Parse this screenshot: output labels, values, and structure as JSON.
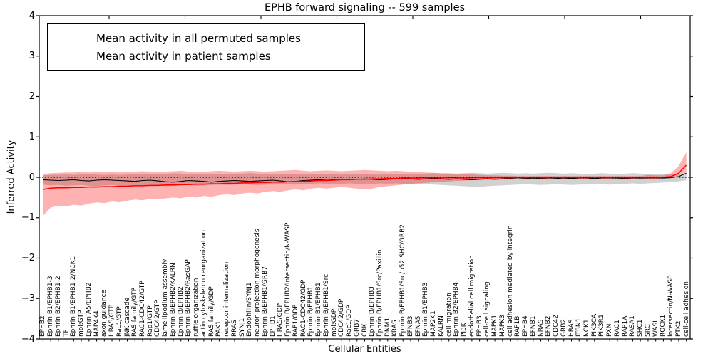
{
  "title": "EPHB forward signaling -- 599 samples",
  "axes": {
    "x_label": "Cellular Entities",
    "y_label": "Inferred Activity"
  },
  "legend": {
    "entries": [
      {
        "label": "Mean activity in all permuted samples",
        "color": "#000000"
      },
      {
        "label": "Mean activity in patient samples",
        "color": "#ff0000"
      }
    ],
    "position": "upper left"
  },
  "chart_data": {
    "type": "line",
    "title": "EPHB forward signaling -- 599 samples",
    "xlabel": "Cellular Entities",
    "ylabel": "Inferred Activity",
    "ylim": [
      -4,
      4
    ],
    "yticks": [
      -4,
      -3,
      -2,
      -1,
      0,
      1,
      2,
      3,
      4
    ],
    "grid": false,
    "legend_position": "upper left",
    "reference_line": {
      "y": 0,
      "style": "dotted",
      "color": "#000000"
    },
    "categories": [
      "EPHB2",
      "Ephrin B1/EPHB1-3",
      "Ephrin B2/EPHB1-2",
      "TF",
      "Ephrin B1/EPHB1-2/NCK1",
      "mol:GTP",
      "Ephrin A5/EPHB2",
      "MAP4K4",
      "axon guidance",
      "HRAS/GTP",
      "Rac1/GTP",
      "JNK cascade",
      "RAS family/GTP",
      "RAC1-CDC42/GTP",
      "Rap1/GTP",
      "CDC42/GTP",
      "lamellipodium assembly",
      "Ephrin B/EPHB2/KALRN",
      "Ephrin B/EPHB2",
      "Ephrin B/EPHB2/RasGAP",
      "ruffle organization",
      "actin cytoskeleton reorganization",
      "RAS family/GDP",
      "PAK1",
      "receptor internalization",
      "RRAS",
      "SYNJ1",
      "Endophilin/SYNJ1",
      "neuron projection morphogenesis",
      "Ephrin B/EPHB1/GRB7",
      "EPHB1",
      "HRAS/GDP",
      "Ephrin B/EPHB2/Intersectin/N-WASP",
      "RAP1/GDP",
      "RAC1-CDC42/GDP",
      "Ephrin B/EPHB1",
      "Ephrin B1/EPHB1",
      "Ephrin B/EPHB1/Src",
      "mol:GDP",
      "CDC42/GDP",
      "Rac1/GDP",
      "GRB7",
      "CRK",
      "Ephrin B/EPHB3",
      "Ephrin B/EPHB1/Src/Paxillin",
      "DNM1",
      "KRAS",
      "Ephrin B/EPHB1/Src/p52 SHC/GRB2",
      "EFNB3",
      "EFNA5",
      "Ephrin B1/EPHB3",
      "MAP2K1",
      "KALRN",
      "cell migration",
      "Ephrin B2/EPHB4",
      "PI3K",
      "endothelial cell migration",
      "EPHB3",
      "cell-cell signaling",
      "MAPK1",
      "MAPK3",
      "cell adhesion mediated by integrin",
      "RAP1B",
      "EPHB4",
      "EFNB1",
      "NRAS",
      "EFNB2",
      "CDC42",
      "GRB2",
      "HRAS",
      "ITSN1",
      "NCK1",
      "PIK3CA",
      "PIK3R1",
      "PXN",
      "RAC1",
      "RAP1A",
      "RASA1",
      "SHC1",
      "SRC",
      "WASL",
      "ROCK1",
      "Intersectin/N-WASP",
      "PTK2",
      "cell-cell adhesion"
    ],
    "series": [
      {
        "name": "Mean activity in all permuted samples",
        "color": "#000000",
        "width": 1.1,
        "values": [
          -0.06,
          -0.07,
          -0.08,
          -0.07,
          -0.06,
          -0.08,
          -0.09,
          -0.07,
          -0.06,
          -0.07,
          -0.08,
          -0.09,
          -0.1,
          -0.08,
          -0.07,
          -0.09,
          -0.11,
          -0.12,
          -0.1,
          -0.08,
          -0.09,
          -0.1,
          -0.12,
          -0.1,
          -0.09,
          -0.08,
          -0.09,
          -0.1,
          -0.09,
          -0.08,
          -0.07,
          -0.09,
          -0.11,
          -0.1,
          -0.08,
          -0.07,
          -0.06,
          -0.07,
          -0.06,
          -0.05,
          -0.06,
          -0.05,
          -0.04,
          -0.05,
          -0.06,
          -0.05,
          -0.04,
          -0.03,
          -0.04,
          -0.05,
          -0.04,
          -0.03,
          -0.04,
          -0.05,
          -0.04,
          -0.05,
          -0.06,
          -0.05,
          -0.04,
          -0.05,
          -0.04,
          -0.03,
          -0.04,
          -0.03,
          -0.02,
          -0.03,
          -0.04,
          -0.03,
          -0.02,
          -0.03,
          -0.02,
          -0.02,
          -0.03,
          -0.02,
          -0.02,
          -0.02,
          -0.03,
          -0.02,
          -0.02,
          -0.02,
          -0.02,
          -0.02,
          -0.01,
          0.02,
          0.1
        ]
      },
      {
        "name": "Mean activity in patient samples",
        "color": "#ff0000",
        "width": 1.5,
        "values": [
          -0.3,
          -0.27,
          -0.26,
          -0.26,
          -0.25,
          -0.25,
          -0.24,
          -0.24,
          -0.23,
          -0.23,
          -0.22,
          -0.22,
          -0.21,
          -0.21,
          -0.2,
          -0.2,
          -0.19,
          -0.19,
          -0.18,
          -0.18,
          -0.17,
          -0.17,
          -0.16,
          -0.16,
          -0.15,
          -0.15,
          -0.14,
          -0.14,
          -0.13,
          -0.13,
          -0.12,
          -0.12,
          -0.11,
          -0.1,
          -0.1,
          -0.09,
          -0.08,
          -0.08,
          -0.07,
          -0.06,
          -0.06,
          -0.05,
          -0.05,
          -0.04,
          -0.04,
          -0.03,
          -0.03,
          -0.02,
          -0.02,
          -0.02,
          -0.01,
          -0.01,
          -0.02,
          -0.01,
          -0.01,
          -0.02,
          -0.01,
          -0.01,
          -0.02,
          -0.01,
          -0.01,
          -0.01,
          0.0,
          -0.01,
          0.0,
          -0.01,
          -0.01,
          0.0,
          -0.01,
          0.0,
          -0.01,
          -0.01,
          0.0,
          -0.01,
          -0.01,
          0.0,
          -0.01,
          -0.01,
          0.0,
          -0.01,
          -0.01,
          0.0,
          0.02,
          0.1,
          0.3
        ]
      }
    ],
    "bands": [
      {
        "name": "permuted samples range",
        "color": "#999999",
        "opacity": 0.45,
        "upper": [
          0.05,
          0.06,
          0.06,
          0.07,
          0.06,
          0.07,
          0.08,
          0.07,
          0.06,
          0.07,
          0.06,
          0.07,
          0.08,
          0.09,
          0.08,
          0.07,
          0.08,
          0.1,
          0.09,
          0.08,
          0.07,
          0.08,
          0.09,
          0.08,
          0.07,
          0.08,
          0.09,
          0.1,
          0.09,
          0.08,
          0.07,
          0.08,
          0.09,
          0.08,
          0.07,
          0.08,
          0.07,
          0.08,
          0.09,
          0.08,
          0.07,
          0.08,
          0.09,
          0.08,
          0.09,
          0.08,
          0.07,
          0.08,
          0.09,
          0.08,
          0.09,
          0.1,
          0.09,
          0.1,
          0.09,
          0.1,
          0.11,
          0.1,
          0.09,
          0.1,
          0.11,
          0.1,
          0.09,
          0.1,
          0.09,
          0.1,
          0.11,
          0.1,
          0.09,
          0.1,
          0.09,
          0.08,
          0.09,
          0.1,
          0.09,
          0.08,
          0.09,
          0.1,
          0.09,
          0.08,
          0.09,
          0.08,
          0.08,
          0.08,
          0.09
        ],
        "lower": [
          -0.18,
          -0.2,
          -0.19,
          -0.21,
          -0.2,
          -0.19,
          -0.21,
          -0.22,
          -0.2,
          -0.19,
          -0.21,
          -0.2,
          -0.22,
          -0.21,
          -0.19,
          -0.2,
          -0.22,
          -0.21,
          -0.2,
          -0.19,
          -0.21,
          -0.2,
          -0.19,
          -0.18,
          -0.19,
          -0.18,
          -0.17,
          -0.18,
          -0.19,
          -0.18,
          -0.17,
          -0.16,
          -0.17,
          -0.18,
          -0.17,
          -0.16,
          -0.15,
          -0.16,
          -0.17,
          -0.16,
          -0.15,
          -0.16,
          -0.17,
          -0.16,
          -0.15,
          -0.16,
          -0.15,
          -0.16,
          -0.17,
          -0.16,
          -0.17,
          -0.18,
          -0.19,
          -0.2,
          -0.21,
          -0.22,
          -0.23,
          -0.24,
          -0.22,
          -0.21,
          -0.2,
          -0.19,
          -0.18,
          -0.17,
          -0.18,
          -0.19,
          -0.18,
          -0.17,
          -0.18,
          -0.19,
          -0.18,
          -0.17,
          -0.16,
          -0.17,
          -0.18,
          -0.17,
          -0.16,
          -0.15,
          -0.16,
          -0.15,
          -0.14,
          -0.13,
          -0.12,
          -0.1,
          -0.07
        ]
      },
      {
        "name": "patient samples range",
        "color": "#ff0000",
        "opacity": 0.3,
        "upper": [
          0.08,
          0.1,
          0.11,
          0.12,
          0.12,
          0.13,
          0.12,
          0.13,
          0.14,
          0.13,
          0.12,
          0.13,
          0.14,
          0.15,
          0.14,
          0.13,
          0.14,
          0.15,
          0.16,
          0.14,
          0.13,
          0.14,
          0.15,
          0.16,
          0.15,
          0.14,
          0.15,
          0.16,
          0.15,
          0.14,
          0.15,
          0.16,
          0.17,
          0.18,
          0.16,
          0.15,
          0.16,
          0.17,
          0.16,
          0.15,
          0.16,
          0.17,
          0.18,
          0.17,
          0.16,
          0.15,
          0.16,
          0.15,
          0.14,
          0.13,
          0.12,
          0.11,
          0.1,
          0.09,
          0.08,
          0.08,
          0.07,
          0.06,
          0.05,
          0.05,
          0.04,
          0.04,
          0.03,
          0.03,
          0.03,
          0.03,
          0.03,
          0.03,
          0.03,
          0.03,
          0.03,
          0.03,
          0.03,
          0.03,
          0.03,
          0.03,
          0.03,
          0.03,
          0.03,
          0.06,
          0.05,
          0.05,
          0.1,
          0.28,
          0.62
        ],
        "lower": [
          -0.95,
          -0.75,
          -0.7,
          -0.72,
          -0.68,
          -0.7,
          -0.65,
          -0.62,
          -0.64,
          -0.6,
          -0.62,
          -0.58,
          -0.55,
          -0.57,
          -0.53,
          -0.55,
          -0.52,
          -0.5,
          -0.52,
          -0.48,
          -0.5,
          -0.46,
          -0.48,
          -0.44,
          -0.42,
          -0.44,
          -0.4,
          -0.38,
          -0.4,
          -0.36,
          -0.34,
          -0.36,
          -0.32,
          -0.3,
          -0.32,
          -0.28,
          -0.26,
          -0.28,
          -0.26,
          -0.24,
          -0.26,
          -0.28,
          -0.3,
          -0.28,
          -0.24,
          -0.22,
          -0.2,
          -0.18,
          -0.16,
          -0.15,
          -0.14,
          -0.12,
          -0.11,
          -0.1,
          -0.09,
          -0.08,
          -0.07,
          -0.06,
          -0.05,
          -0.05,
          -0.04,
          -0.04,
          -0.03,
          -0.03,
          -0.03,
          -0.03,
          -0.03,
          -0.03,
          -0.03,
          -0.03,
          -0.03,
          -0.03,
          -0.03,
          -0.03,
          -0.03,
          -0.03,
          -0.03,
          -0.03,
          -0.03,
          -0.03,
          -0.03,
          -0.02,
          0.0,
          0.05,
          0.12
        ]
      }
    ]
  }
}
